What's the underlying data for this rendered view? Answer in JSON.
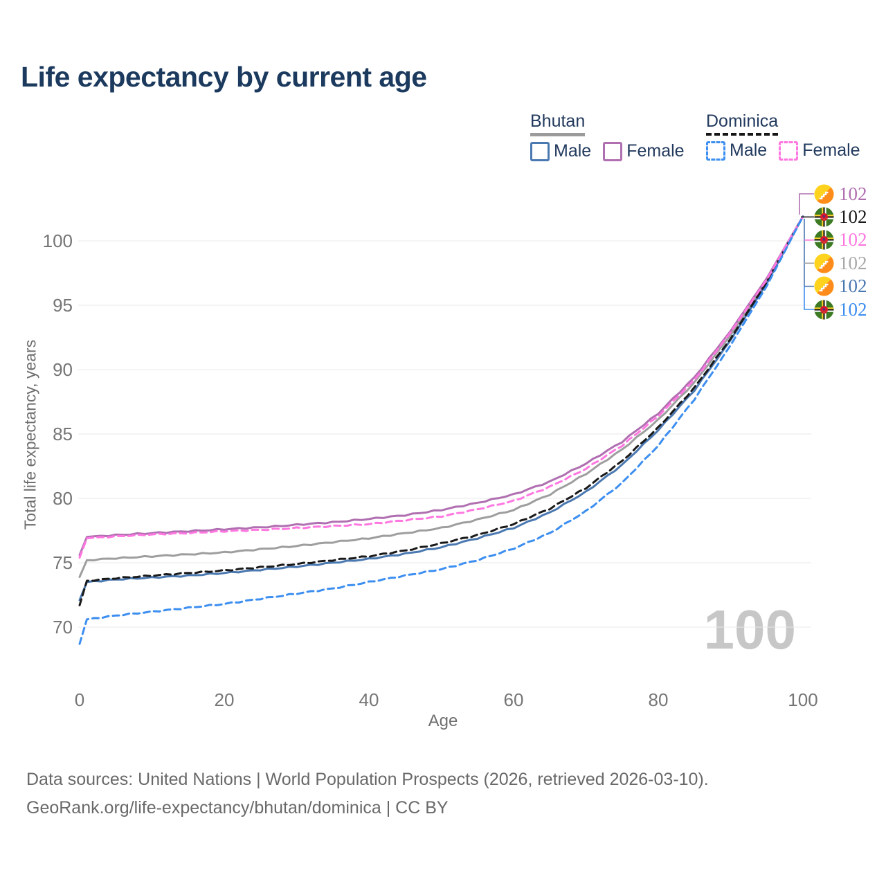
{
  "page": {
    "title": "Life expectancy by current age"
  },
  "legend": {
    "groups": [
      {
        "label": "Bhutan",
        "line_style": "solid",
        "line_color": "#9b9b9b",
        "items": [
          {
            "label": "Male",
            "color": "#4a78b0",
            "style": "solid"
          },
          {
            "label": "Female",
            "color": "#b06fb0",
            "style": "solid"
          }
        ]
      },
      {
        "label": "Dominica",
        "line_style": "dashed",
        "line_color": "#161616",
        "items": [
          {
            "label": "Male",
            "color": "#3c8ef0",
            "style": "dashed"
          },
          {
            "label": "Female",
            "color": "#ff77e1",
            "style": "dashed"
          }
        ]
      }
    ]
  },
  "chart_data": {
    "type": "line",
    "title": "Life expectancy by current age",
    "xlabel": "Age",
    "ylabel": "Total life expectancy, years",
    "x_ticks": [
      0,
      20,
      40,
      60,
      80,
      100
    ],
    "y_ticks": [
      70,
      75,
      80,
      85,
      90,
      95,
      100
    ],
    "xlim": [
      0,
      100
    ],
    "ylim": [
      67.5,
      103
    ],
    "grid": "horizontal",
    "age_counter": "100",
    "series": [
      {
        "name": "Bhutan",
        "country": "Bhutan",
        "sex": "both",
        "style": "solid",
        "color": "#9e9e9e",
        "points": [
          [
            0,
            73.9
          ],
          [
            1,
            75.2
          ],
          [
            5,
            75.35
          ],
          [
            10,
            75.5
          ],
          [
            15,
            75.65
          ],
          [
            20,
            75.8
          ],
          [
            25,
            76.05
          ],
          [
            30,
            76.3
          ],
          [
            35,
            76.6
          ],
          [
            40,
            76.9
          ],
          [
            45,
            77.3
          ],
          [
            50,
            77.7
          ],
          [
            55,
            78.35
          ],
          [
            60,
            79.1
          ],
          [
            65,
            80.3
          ],
          [
            70,
            81.9
          ],
          [
            75,
            83.8
          ],
          [
            80,
            86.1
          ],
          [
            85,
            89.0
          ],
          [
            90,
            92.7
          ],
          [
            95,
            96.9
          ],
          [
            100,
            101.9
          ]
        ]
      },
      {
        "name": "Bhutan Female",
        "country": "Bhutan",
        "sex": "female",
        "style": "solid",
        "color": "#b06fb0",
        "points": [
          [
            0,
            75.6
          ],
          [
            1,
            77.0
          ],
          [
            5,
            77.15
          ],
          [
            10,
            77.3
          ],
          [
            15,
            77.45
          ],
          [
            20,
            77.6
          ],
          [
            25,
            77.75
          ],
          [
            30,
            77.95
          ],
          [
            35,
            78.15
          ],
          [
            40,
            78.4
          ],
          [
            45,
            78.7
          ],
          [
            50,
            79.1
          ],
          [
            55,
            79.65
          ],
          [
            60,
            80.3
          ],
          [
            65,
            81.3
          ],
          [
            70,
            82.7
          ],
          [
            75,
            84.4
          ],
          [
            80,
            86.6
          ],
          [
            85,
            89.4
          ],
          [
            90,
            93.0
          ],
          [
            95,
            97.1
          ],
          [
            100,
            101.9
          ]
        ]
      },
      {
        "name": "Bhutan Male",
        "country": "Bhutan",
        "sex": "male",
        "style": "solid",
        "color": "#4a78b0",
        "points": [
          [
            0,
            72.1
          ],
          [
            1,
            73.5
          ],
          [
            5,
            73.7
          ],
          [
            10,
            73.85
          ],
          [
            15,
            74.0
          ],
          [
            20,
            74.2
          ],
          [
            25,
            74.45
          ],
          [
            30,
            74.7
          ],
          [
            35,
            75.0
          ],
          [
            40,
            75.3
          ],
          [
            45,
            75.7
          ],
          [
            50,
            76.2
          ],
          [
            55,
            76.9
          ],
          [
            60,
            77.7
          ],
          [
            65,
            78.9
          ],
          [
            70,
            80.5
          ],
          [
            75,
            82.6
          ],
          [
            80,
            85.3
          ],
          [
            85,
            88.4
          ],
          [
            90,
            92.3
          ],
          [
            95,
            96.7
          ],
          [
            100,
            101.9
          ]
        ]
      },
      {
        "name": "Dominica",
        "country": "Dominica",
        "sex": "both",
        "style": "dashed",
        "color": "#1a1a1a",
        "points": [
          [
            0,
            71.7
          ],
          [
            1,
            73.6
          ],
          [
            5,
            73.8
          ],
          [
            10,
            74.0
          ],
          [
            15,
            74.2
          ],
          [
            20,
            74.4
          ],
          [
            25,
            74.65
          ],
          [
            30,
            74.9
          ],
          [
            35,
            75.2
          ],
          [
            40,
            75.5
          ],
          [
            45,
            75.95
          ],
          [
            50,
            76.5
          ],
          [
            55,
            77.15
          ],
          [
            60,
            78.0
          ],
          [
            65,
            79.2
          ],
          [
            70,
            80.8
          ],
          [
            75,
            82.9
          ],
          [
            80,
            85.5
          ],
          [
            85,
            88.6
          ],
          [
            90,
            92.4
          ],
          [
            95,
            96.8
          ],
          [
            100,
            101.9
          ]
        ]
      },
      {
        "name": "Dominica Female",
        "country": "Dominica",
        "sex": "female",
        "style": "dashed",
        "color": "#ff77e1",
        "points": [
          [
            0,
            75.4
          ],
          [
            1,
            76.9
          ],
          [
            5,
            77.05
          ],
          [
            10,
            77.2
          ],
          [
            15,
            77.3
          ],
          [
            20,
            77.45
          ],
          [
            25,
            77.55
          ],
          [
            30,
            77.7
          ],
          [
            35,
            77.85
          ],
          [
            40,
            78.0
          ],
          [
            45,
            78.3
          ],
          [
            50,
            78.6
          ],
          [
            55,
            79.15
          ],
          [
            60,
            79.8
          ],
          [
            65,
            80.9
          ],
          [
            70,
            82.3
          ],
          [
            75,
            84.1
          ],
          [
            80,
            86.4
          ],
          [
            85,
            89.2
          ],
          [
            90,
            92.9
          ],
          [
            95,
            97.0
          ],
          [
            100,
            101.9
          ]
        ]
      },
      {
        "name": "Dominica Male",
        "country": "Dominica",
        "sex": "male",
        "style": "dashed",
        "color": "#3c8ef0",
        "points": [
          [
            0,
            68.7
          ],
          [
            1,
            70.6
          ],
          [
            5,
            70.9
          ],
          [
            10,
            71.2
          ],
          [
            15,
            71.5
          ],
          [
            20,
            71.8
          ],
          [
            25,
            72.2
          ],
          [
            30,
            72.6
          ],
          [
            35,
            73.0
          ],
          [
            40,
            73.5
          ],
          [
            45,
            74.0
          ],
          [
            50,
            74.5
          ],
          [
            55,
            75.2
          ],
          [
            60,
            76.1
          ],
          [
            65,
            77.3
          ],
          [
            70,
            79.0
          ],
          [
            75,
            81.2
          ],
          [
            80,
            84.1
          ],
          [
            85,
            87.7
          ],
          [
            90,
            91.9
          ],
          [
            95,
            96.5
          ],
          [
            100,
            101.9
          ]
        ]
      }
    ],
    "end_labels": [
      {
        "flag": "bhutan",
        "series": "Bhutan Female",
        "text": "102",
        "color": "#b06fb0"
      },
      {
        "flag": "dominica",
        "series": "Dominica",
        "text": "102",
        "color": "#1a1a1a"
      },
      {
        "flag": "dominica",
        "series": "Dominica Female",
        "text": "102",
        "color": "#ff77e1"
      },
      {
        "flag": "bhutan",
        "series": "Bhutan",
        "text": "102",
        "color": "#a8a8a8"
      },
      {
        "flag": "bhutan",
        "series": "Bhutan Male",
        "text": "102",
        "color": "#4a78b0"
      },
      {
        "flag": "dominica",
        "series": "Dominica Male",
        "text": "102",
        "color": "#3c8ef0"
      }
    ]
  },
  "footer": {
    "line1": "Data sources: United Nations | World Population Prospects (2026, retrieved 2026-03-10).",
    "line2": "GeoRank.org/life-expectancy/bhutan/dominica | CC BY"
  }
}
